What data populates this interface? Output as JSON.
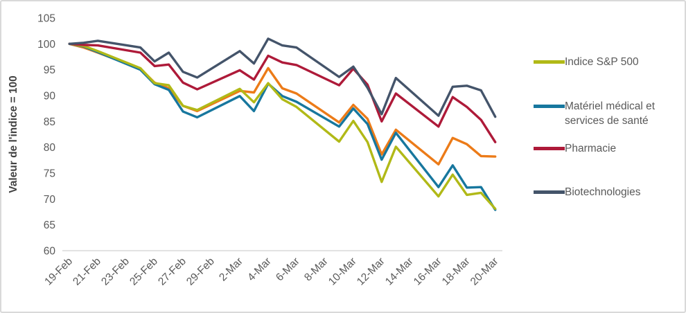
{
  "figure": {
    "background": "#FFFFFF",
    "border_color": "#D9D9D9"
  },
  "y_axis": {
    "title": "Valeur de l'indice = 100",
    "ticks": [
      105,
      100,
      95,
      90,
      85,
      80,
      75,
      70,
      65,
      60
    ],
    "min": 60,
    "max": 105,
    "label_color": "#595959",
    "title_color": "#404040",
    "axis_line_color": "#D9D9D9"
  },
  "x_axis": {
    "tick_labels": [
      "19-Feb",
      "21-Feb",
      "23-Feb",
      "25-Feb",
      "27-Feb",
      "29-Feb",
      "2-Mar",
      "4-Mar",
      "6-Mar",
      "8-Mar",
      "10-Mar",
      "12-Mar",
      "14-Mar",
      "16-Mar",
      "18-Mar",
      "20-Mar"
    ],
    "tick_offsets": [
      0,
      2,
      4,
      6,
      8,
      10,
      12,
      14,
      16,
      18,
      20,
      22,
      24,
      26,
      28,
      30
    ],
    "label_color": "#595959"
  },
  "legend": {
    "entries": [
      {
        "label": "Indice S&P 500",
        "color": "#B1B917"
      },
      {
        "label": "Matériel médical et services de santé",
        "color": "#17779E"
      },
      {
        "label": "Pharmacie",
        "color": "#AE1A39"
      },
      {
        "label": "Biotechnologies",
        "color": "#44546A"
      }
    ]
  },
  "chart_data": {
    "type": "line",
    "title": "",
    "xlabel": "",
    "ylabel": "Valeur de l'indice = 100",
    "ylim": [
      60,
      105
    ],
    "grid": false,
    "legend_position": "right",
    "x_is_date_axis": true,
    "dates": [
      "19-Feb",
      "20-Feb",
      "21-Feb",
      "24-Feb",
      "25-Feb",
      "26-Feb",
      "27-Feb",
      "28-Feb",
      "2-Mar",
      "3-Mar",
      "4-Mar",
      "5-Mar",
      "6-Mar",
      "9-Mar",
      "10-Mar",
      "11-Mar",
      "12-Mar",
      "13-Mar",
      "16-Mar",
      "17-Mar",
      "18-Mar",
      "19-Mar",
      "20-Mar"
    ],
    "day_offsets": [
      0,
      1,
      2,
      5,
      6,
      7,
      8,
      9,
      12,
      13,
      14,
      15,
      16,
      19,
      20,
      21,
      22,
      23,
      26,
      27,
      28,
      29,
      30
    ],
    "series": [
      {
        "name": "Indice S&P 500",
        "color": "#B1B917",
        "values": [
          100,
          99.6,
          98.6,
          95.3,
          92.4,
          92.0,
          88.0,
          87.2,
          91.3,
          88.7,
          92.4,
          89.3,
          87.8,
          81.1,
          85.1,
          81.0,
          73.3,
          80.1,
          70.5,
          74.7,
          70.8,
          71.2,
          68.1
        ]
      },
      {
        "name": "Matériel médical et services de santé",
        "color": "#17779E",
        "values": [
          100,
          99.5,
          98.4,
          95.0,
          92.2,
          91.1,
          86.9,
          85.8,
          89.9,
          87.0,
          92.3,
          89.9,
          88.8,
          84.0,
          87.5,
          84.5,
          77.6,
          82.8,
          72.3,
          76.5,
          72.2,
          72.3,
          67.9
        ]
      },
      {
        "name": "Pharmacie",
        "color": "#AE1A39",
        "values": [
          100,
          99.8,
          99.7,
          98.3,
          95.7,
          96.0,
          92.5,
          91.2,
          94.9,
          93.1,
          97.7,
          96.4,
          95.9,
          92.0,
          95.2,
          92.1,
          85.0,
          90.4,
          84.0,
          89.7,
          87.8,
          85.3,
          81.0
        ]
      },
      {
        "name": "Biotechnologies",
        "color": "#44546A",
        "values": [
          100,
          100.2,
          100.6,
          99.3,
          96.6,
          98.3,
          94.6,
          93.5,
          98.6,
          96.2,
          101.0,
          99.7,
          99.3,
          93.6,
          95.6,
          91.5,
          86.4,
          93.4,
          86.1,
          91.7,
          91.9,
          91.0,
          85.9
        ]
      },
      {
        "name": null,
        "legend_visible": false,
        "color": "#EC7B18",
        "values": [
          100,
          99.3,
          98.3,
          95.2,
          92.5,
          91.4,
          88.0,
          87.0,
          90.9,
          90.6,
          95.3,
          91.4,
          90.4,
          84.8,
          88.2,
          85.5,
          78.6,
          83.4,
          76.7,
          81.8,
          80.6,
          78.3,
          78.2
        ]
      }
    ]
  }
}
